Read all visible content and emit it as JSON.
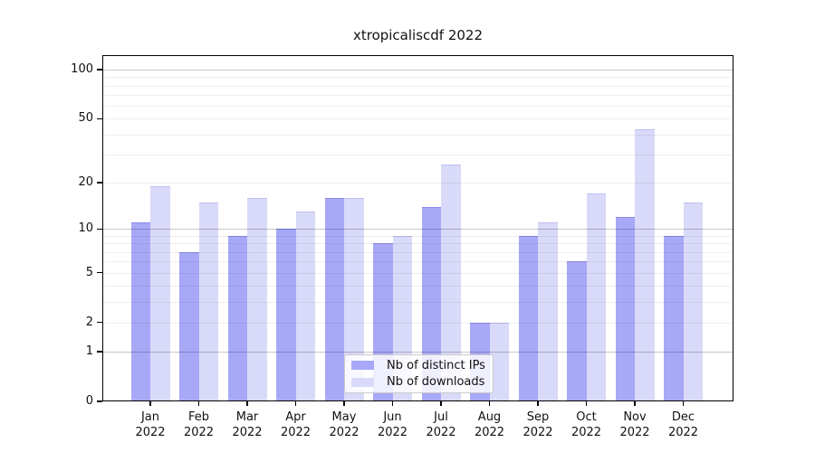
{
  "chart_data": {
    "type": "bar",
    "title": "xtropicaliscdf 2022",
    "x_tick_labels": [
      "Jan 2022",
      "Feb 2022",
      "Mar 2022",
      "Apr 2022",
      "May 2022",
      "Jun 2022",
      "Jul 2022",
      "Aug 2022",
      "Sep 2022",
      "Oct 2022",
      "Nov 2022",
      "Dec 2022"
    ],
    "series": [
      {
        "name": "Nb of distinct IPs",
        "color": "#a8a8f8",
        "edge_color": "rgba(105,105,215,0.45)",
        "values": [
          11,
          7,
          9,
          10,
          16,
          8,
          14,
          2,
          9,
          6,
          12,
          9
        ]
      },
      {
        "name": "Nb of downloads",
        "color": "#d9d9f9",
        "edge_color": "rgba(160,160,230,0.45)",
        "values": [
          19,
          15,
          16,
          13,
          16,
          9,
          26,
          2,
          11,
          17,
          43,
          15
        ]
      }
    ],
    "yscale": "log1p",
    "ylim": [
      0,
      120
    ],
    "y_tick_values": [
      100,
      50,
      20,
      10,
      5,
      2,
      1,
      0
    ],
    "y_major_gridlines": [
      1,
      10,
      100
    ],
    "y_minor_gridlines": [
      2,
      3,
      4,
      5,
      6,
      7,
      8,
      9,
      20,
      30,
      40,
      50,
      60,
      70,
      80,
      90
    ],
    "grid": "on",
    "legend_position": "lower center"
  }
}
